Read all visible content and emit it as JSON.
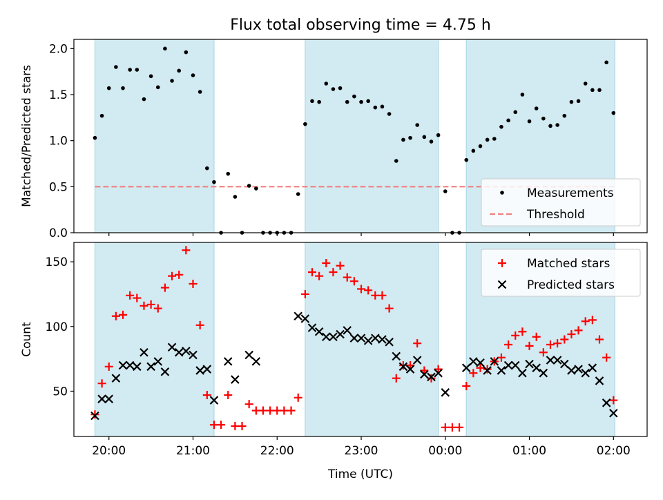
{
  "figure_title": "Flux total observing time = 4.75 h",
  "colors": {
    "band": "#add8e6",
    "threshold": "#f08080",
    "matched": "#ff0000",
    "predicted": "#000000",
    "measurement": "#000000"
  },
  "chart_data": [
    {
      "type": "scatter",
      "panel": "top",
      "ylabel": "Matched/Predicted stars",
      "ylim": [
        0,
        2.1
      ],
      "yticks": [
        0,
        0.5,
        1,
        1.5,
        2
      ],
      "ytick_labels": [
        "0.0",
        "0.5",
        "1.0",
        "1.5",
        "2.0"
      ],
      "xlim": [
        "19:35",
        "02:24"
      ],
      "shaded_intervals": [
        [
          "19:50",
          "21:15"
        ],
        [
          "22:20",
          "23:55"
        ],
        [
          "00:15",
          "02:01"
        ]
      ],
      "legend": {
        "position": "lower right",
        "entries": [
          "Measurements",
          "Threshold"
        ]
      },
      "threshold": {
        "name": "Threshold",
        "y": 0.5,
        "x_range": [
          "19:50",
          "02:01"
        ],
        "style": "dashed"
      },
      "series": [
        {
          "name": "Measurements",
          "marker": "dot",
          "points": [
            [
              "19:50",
              1.03
            ],
            [
              "19:55",
              1.27
            ],
            [
              "20:00",
              1.57
            ],
            [
              "20:05",
              1.8
            ],
            [
              "20:10",
              1.57
            ],
            [
              "20:15",
              1.77
            ],
            [
              "20:20",
              1.77
            ],
            [
              "20:25",
              1.45
            ],
            [
              "20:30",
              1.7
            ],
            [
              "20:35",
              1.58
            ],
            [
              "20:40",
              2.0
            ],
            [
              "20:45",
              1.65
            ],
            [
              "20:50",
              1.76
            ],
            [
              "20:55",
              1.96
            ],
            [
              "21:00",
              1.71
            ],
            [
              "21:05",
              1.53
            ],
            [
              "21:10",
              0.7
            ],
            [
              "21:15",
              0.55
            ],
            [
              "21:20",
              0.0
            ],
            [
              "21:25",
              0.64
            ],
            [
              "21:30",
              0.39
            ],
            [
              "21:35",
              0.0
            ],
            [
              "21:40",
              0.51
            ],
            [
              "21:45",
              0.48
            ],
            [
              "21:50",
              0.0
            ],
            [
              "21:55",
              0.0
            ],
            [
              "22:00",
              0.0
            ],
            [
              "22:05",
              0.0
            ],
            [
              "22:10",
              0.0
            ],
            [
              "22:15",
              0.42
            ],
            [
              "22:20",
              1.18
            ],
            [
              "22:25",
              1.43
            ],
            [
              "22:30",
              1.42
            ],
            [
              "22:35",
              1.62
            ],
            [
              "22:40",
              1.56
            ],
            [
              "22:45",
              1.57
            ],
            [
              "22:50",
              1.42
            ],
            [
              "22:55",
              1.48
            ],
            [
              "23:00",
              1.42
            ],
            [
              "23:05",
              1.43
            ],
            [
              "23:10",
              1.36
            ],
            [
              "23:15",
              1.37
            ],
            [
              "23:20",
              1.29
            ],
            [
              "23:25",
              0.78
            ],
            [
              "23:30",
              1.01
            ],
            [
              "23:35",
              1.03
            ],
            [
              "23:40",
              1.17
            ],
            [
              "23:45",
              1.04
            ],
            [
              "23:50",
              0.99
            ],
            [
              "23:55",
              1.06
            ],
            [
              "00:00",
              0.45
            ],
            [
              "00:05",
              0.0
            ],
            [
              "00:10",
              0.0
            ],
            [
              "00:15",
              0.79
            ],
            [
              "00:20",
              0.89
            ],
            [
              "00:25",
              0.94
            ],
            [
              "00:30",
              1.01
            ],
            [
              "00:35",
              1.02
            ],
            [
              "00:40",
              1.15
            ],
            [
              "00:45",
              1.22
            ],
            [
              "00:50",
              1.31
            ],
            [
              "00:55",
              1.5
            ],
            [
              "01:00",
              1.21
            ],
            [
              "01:05",
              1.35
            ],
            [
              "01:10",
              1.24
            ],
            [
              "01:15",
              1.16
            ],
            [
              "01:20",
              1.17
            ],
            [
              "01:25",
              1.27
            ],
            [
              "01:30",
              1.42
            ],
            [
              "01:35",
              1.43
            ],
            [
              "01:40",
              1.62
            ],
            [
              "01:45",
              1.55
            ],
            [
              "01:50",
              1.55
            ],
            [
              "01:55",
              1.85
            ],
            [
              "02:00",
              1.3
            ]
          ]
        }
      ]
    },
    {
      "type": "scatter",
      "panel": "bottom",
      "xlabel": "Time (UTC)",
      "ylabel": "Count",
      "ylim": [
        15,
        165
      ],
      "yticks": [
        50,
        100,
        150
      ],
      "ytick_labels": [
        "50",
        "100",
        "150"
      ],
      "xlim": [
        "19:35",
        "02:24"
      ],
      "xticks": [
        "20:00",
        "21:00",
        "22:00",
        "23:00",
        "00:00",
        "01:00",
        "02:00"
      ],
      "shaded_intervals": [
        [
          "19:50",
          "21:15"
        ],
        [
          "22:20",
          "23:55"
        ],
        [
          "00:15",
          "02:01"
        ]
      ],
      "legend": {
        "position": "upper right",
        "entries": [
          "Matched stars",
          "Predicted stars"
        ]
      },
      "series": [
        {
          "name": "Matched stars",
          "marker": "plus",
          "points": [
            [
              "19:50",
              32
            ],
            [
              "19:55",
              56
            ],
            [
              "20:00",
              69
            ],
            [
              "20:05",
              108
            ],
            [
              "20:10",
              109
            ],
            [
              "20:15",
              124
            ],
            [
              "20:20",
              122
            ],
            [
              "20:25",
              116
            ],
            [
              "20:30",
              117
            ],
            [
              "20:35",
              114
            ],
            [
              "20:40",
              130
            ],
            [
              "20:45",
              139
            ],
            [
              "20:50",
              140
            ],
            [
              "20:55",
              159
            ],
            [
              "21:00",
              133
            ],
            [
              "21:05",
              101
            ],
            [
              "21:10",
              47
            ],
            [
              "21:15",
              24
            ],
            [
              "21:20",
              24
            ],
            [
              "21:25",
              47
            ],
            [
              "21:30",
              23
            ],
            [
              "21:35",
              23
            ],
            [
              "21:40",
              40
            ],
            [
              "21:45",
              35
            ],
            [
              "21:50",
              35
            ],
            [
              "21:55",
              35
            ],
            [
              "22:00",
              35
            ],
            [
              "22:05",
              35
            ],
            [
              "22:10",
              35
            ],
            [
              "22:15",
              45
            ],
            [
              "22:20",
              125
            ],
            [
              "22:25",
              142
            ],
            [
              "22:30",
              139
            ],
            [
              "22:35",
              149
            ],
            [
              "22:40",
              142
            ],
            [
              "22:45",
              147
            ],
            [
              "22:50",
              138
            ],
            [
              "22:55",
              135
            ],
            [
              "23:00",
              129
            ],
            [
              "23:05",
              128
            ],
            [
              "23:10",
              124
            ],
            [
              "23:15",
              124
            ],
            [
              "23:20",
              114
            ],
            [
              "23:25",
              60
            ],
            [
              "23:30",
              70
            ],
            [
              "23:35",
              70
            ],
            [
              "23:40",
              87
            ],
            [
              "23:45",
              66
            ],
            [
              "23:50",
              60
            ],
            [
              "23:55",
              67
            ],
            [
              "00:00",
              22
            ],
            [
              "00:05",
              22
            ],
            [
              "00:10",
              22
            ],
            [
              "00:15",
              54
            ],
            [
              "00:20",
              64
            ],
            [
              "00:25",
              68
            ],
            [
              "00:30",
              67
            ],
            [
              "00:35",
              73
            ],
            [
              "00:40",
              76
            ],
            [
              "00:45",
              86
            ],
            [
              "00:50",
              93
            ],
            [
              "00:55",
              96
            ],
            [
              "01:00",
              85
            ],
            [
              "01:05",
              92
            ],
            [
              "01:10",
              80
            ],
            [
              "01:15",
              86
            ],
            [
              "01:20",
              87
            ],
            [
              "01:25",
              90
            ],
            [
              "01:30",
              94
            ],
            [
              "01:35",
              97
            ],
            [
              "01:40",
              104
            ],
            [
              "01:45",
              105
            ],
            [
              "01:50",
              90
            ],
            [
              "01:55",
              76
            ],
            [
              "02:00",
              43
            ]
          ]
        },
        {
          "name": "Predicted stars",
          "marker": "x",
          "points": [
            [
              "19:50",
              31
            ],
            [
              "19:55",
              44
            ],
            [
              "20:00",
              44
            ],
            [
              "20:05",
              60
            ],
            [
              "20:10",
              70
            ],
            [
              "20:15",
              70
            ],
            [
              "20:20",
              69
            ],
            [
              "20:25",
              80
            ],
            [
              "20:30",
              69
            ],
            [
              "20:35",
              73
            ],
            [
              "20:40",
              65
            ],
            [
              "20:45",
              84
            ],
            [
              "20:50",
              80
            ],
            [
              "20:55",
              81
            ],
            [
              "21:00",
              78
            ],
            [
              "21:05",
              66
            ],
            [
              "21:10",
              67
            ],
            [
              "21:15",
              43
            ],
            [
              "21:25",
              73
            ],
            [
              "21:30",
              59
            ],
            [
              "21:40",
              78
            ],
            [
              "21:45",
              73
            ],
            [
              "22:15",
              108
            ],
            [
              "22:20",
              106
            ],
            [
              "22:25",
              99
            ],
            [
              "22:30",
              96
            ],
            [
              "22:35",
              92
            ],
            [
              "22:40",
              92
            ],
            [
              "22:45",
              94
            ],
            [
              "22:50",
              97
            ],
            [
              "22:55",
              91
            ],
            [
              "23:00",
              91
            ],
            [
              "23:05",
              89
            ],
            [
              "23:10",
              91
            ],
            [
              "23:15",
              90
            ],
            [
              "23:20",
              88
            ],
            [
              "23:25",
              77
            ],
            [
              "23:30",
              69
            ],
            [
              "23:35",
              67
            ],
            [
              "23:40",
              74
            ],
            [
              "23:45",
              63
            ],
            [
              "23:50",
              61
            ],
            [
              "23:55",
              64
            ],
            [
              "00:00",
              49
            ],
            [
              "00:15",
              68
            ],
            [
              "00:20",
              73
            ],
            [
              "00:25",
              72
            ],
            [
              "00:30",
              66
            ],
            [
              "00:35",
              73
            ],
            [
              "00:40",
              66
            ],
            [
              "00:45",
              70
            ],
            [
              "00:50",
              70
            ],
            [
              "00:55",
              64
            ],
            [
              "01:00",
              71
            ],
            [
              "01:05",
              68
            ],
            [
              "01:10",
              64
            ],
            [
              "01:15",
              74
            ],
            [
              "01:20",
              74
            ],
            [
              "01:25",
              71
            ],
            [
              "01:30",
              66
            ],
            [
              "01:35",
              67
            ],
            [
              "01:40",
              64
            ],
            [
              "01:45",
              68
            ],
            [
              "01:50",
              58
            ],
            [
              "01:55",
              41
            ],
            [
              "02:00",
              33
            ]
          ]
        }
      ]
    }
  ]
}
